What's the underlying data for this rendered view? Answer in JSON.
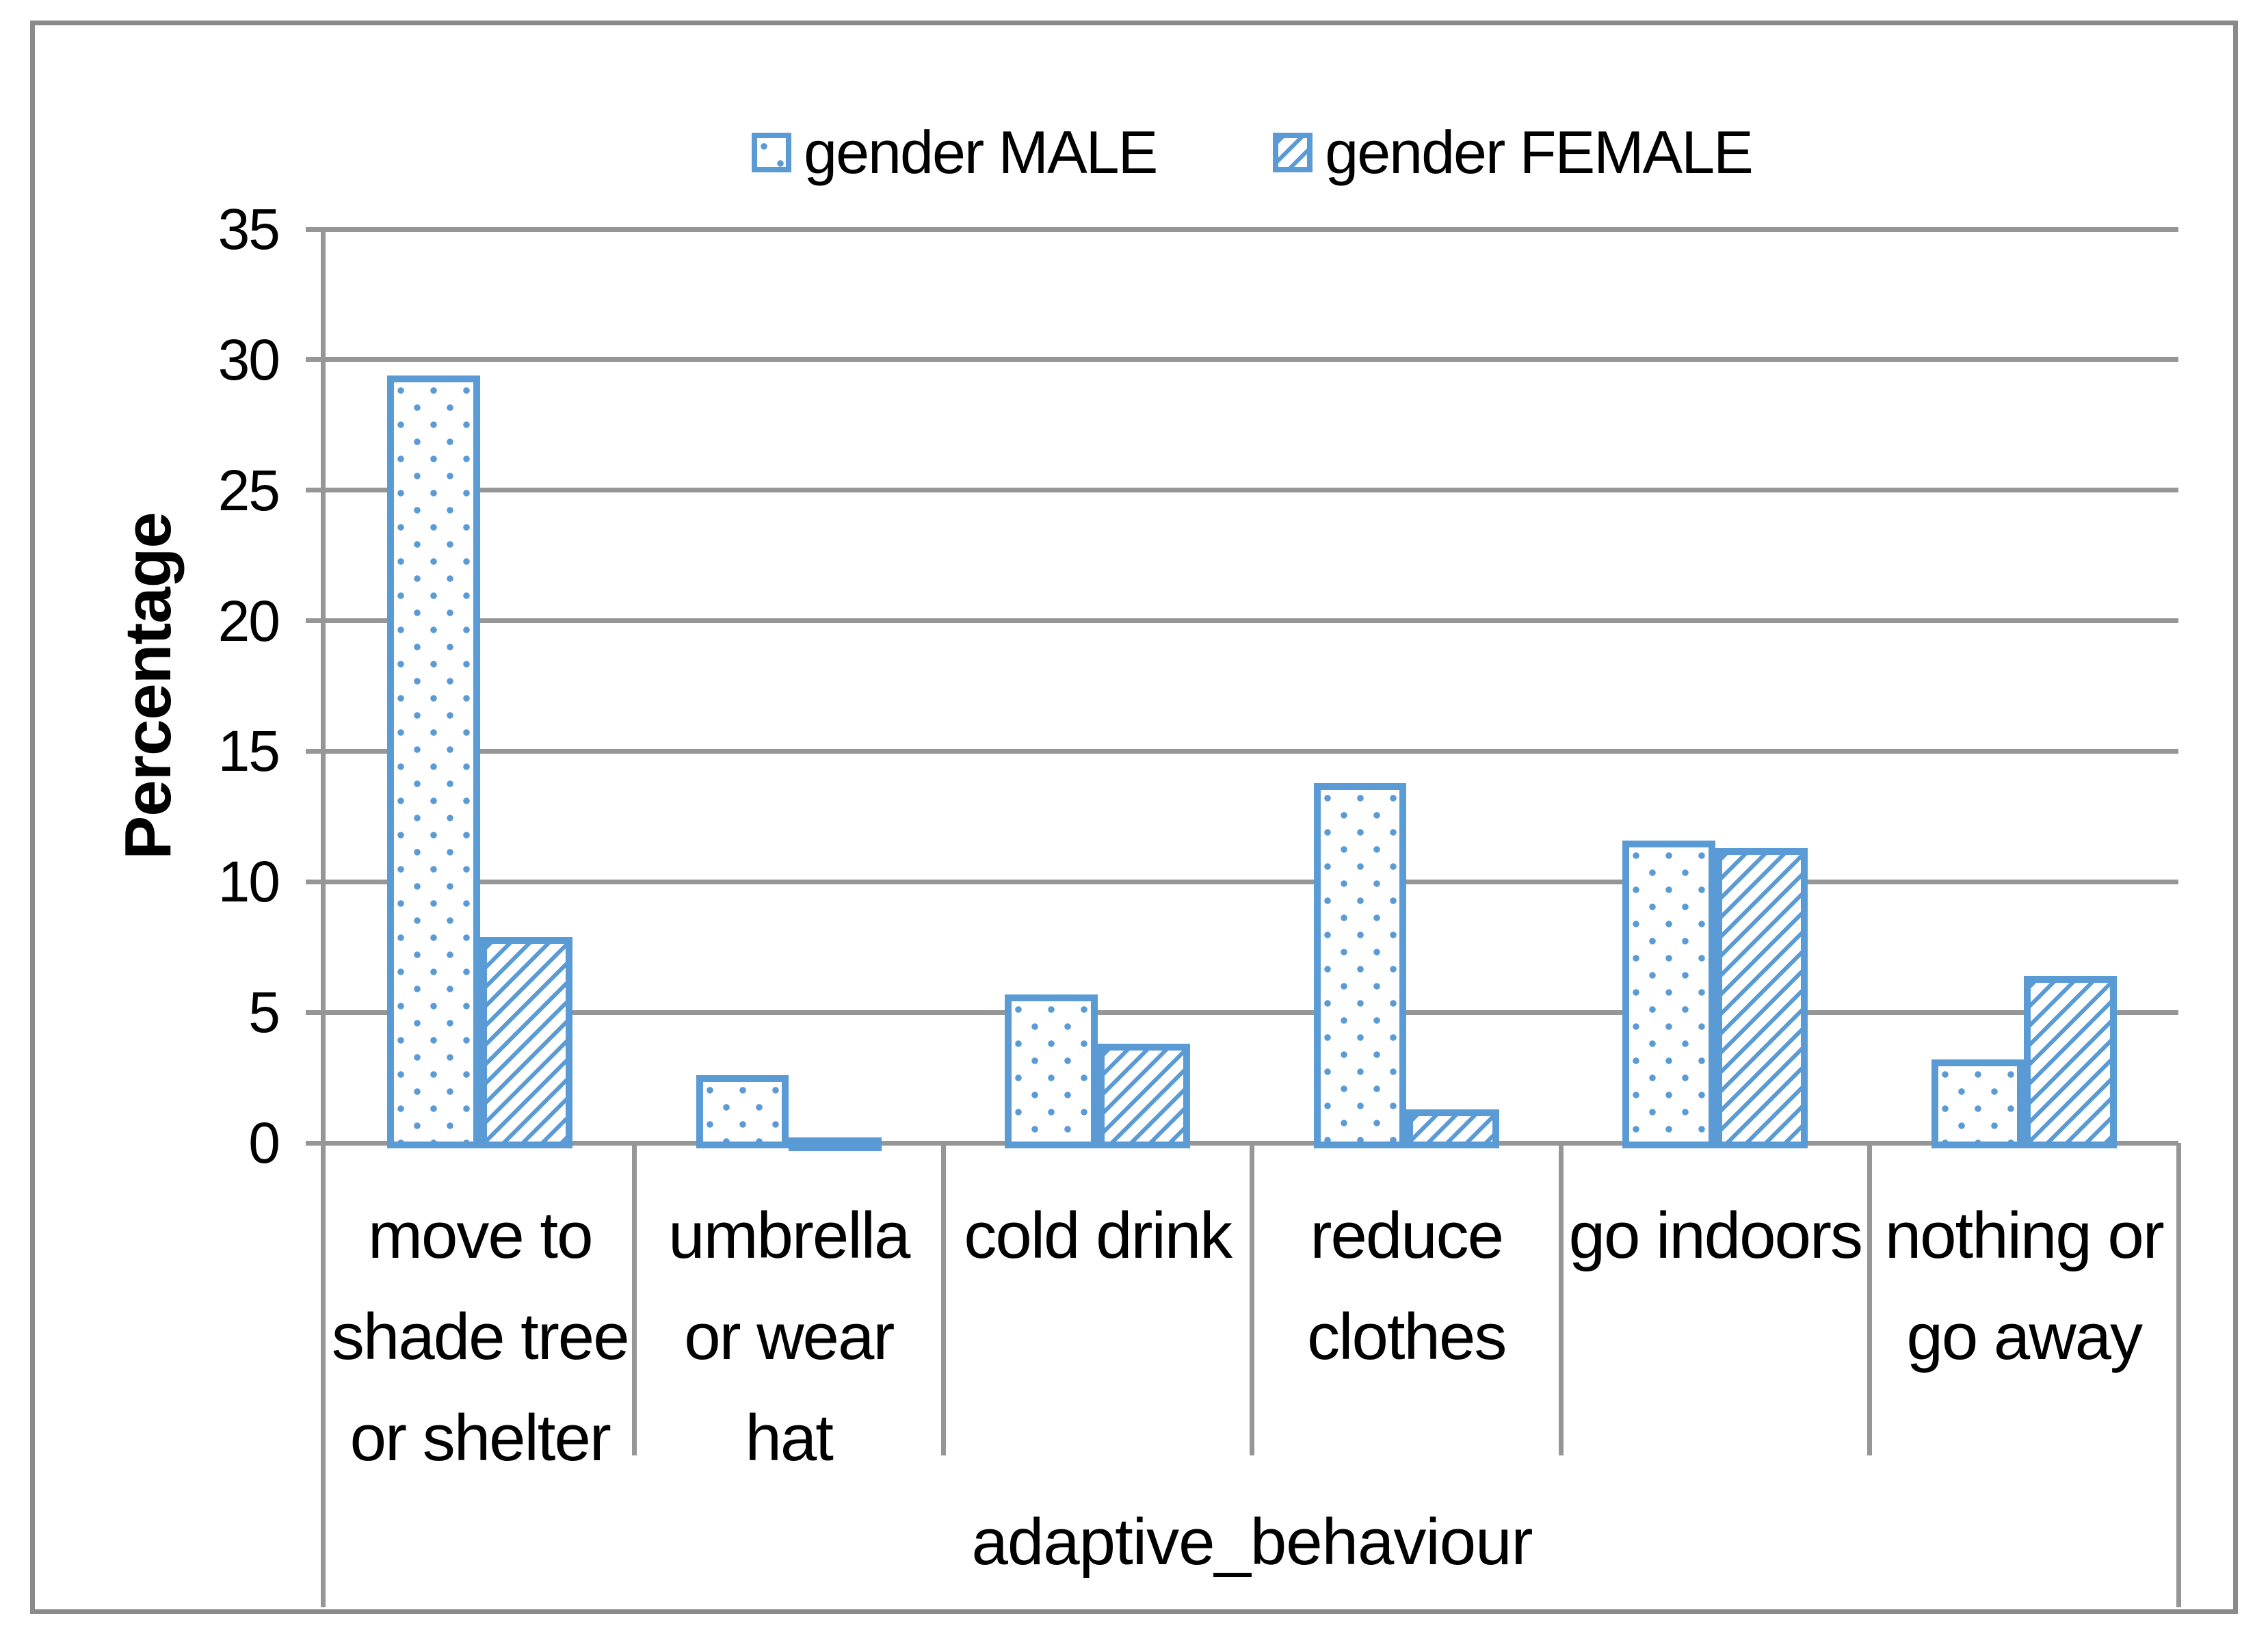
{
  "chart_data": {
    "type": "bar",
    "title": "",
    "xlabel": "adaptive_behaviour",
    "ylabel": "Percentage",
    "categories": [
      "move to shade tree or shelter",
      "umbrella or wear hat",
      "cold drink",
      "reduce clothes",
      "go indoors",
      "nothing or go away"
    ],
    "category_label_lines": [
      [
        "move to",
        "shade tree",
        "or shelter"
      ],
      [
        "umbrella",
        "or wear",
        "hat"
      ],
      [
        "cold drink"
      ],
      [
        "reduce",
        "clothes"
      ],
      [
        "go indoors"
      ],
      [
        "nothing or",
        "go away"
      ]
    ],
    "series": [
      {
        "name": "gender MALE",
        "pattern": "dots",
        "values": [
          29.6,
          2.8,
          5.9,
          14.0,
          11.8,
          3.4
        ]
      },
      {
        "name": "gender FEMALE",
        "pattern": "diagonal-hatch",
        "values": [
          8.1,
          0.3,
          4.0,
          1.5,
          11.5,
          6.6
        ]
      }
    ],
    "ylim": [
      0,
      35
    ],
    "yticks": [
      0,
      5,
      10,
      15,
      20,
      25,
      30,
      35
    ],
    "grid": true,
    "legend_position": "top-center",
    "colors": {
      "bar_outline": "#5B9BD5",
      "pattern_fill": "#5B9BD5",
      "gridline": "#969696",
      "frame": "#8a8a8a",
      "text": "#000000",
      "background": "#ffffff"
    }
  }
}
